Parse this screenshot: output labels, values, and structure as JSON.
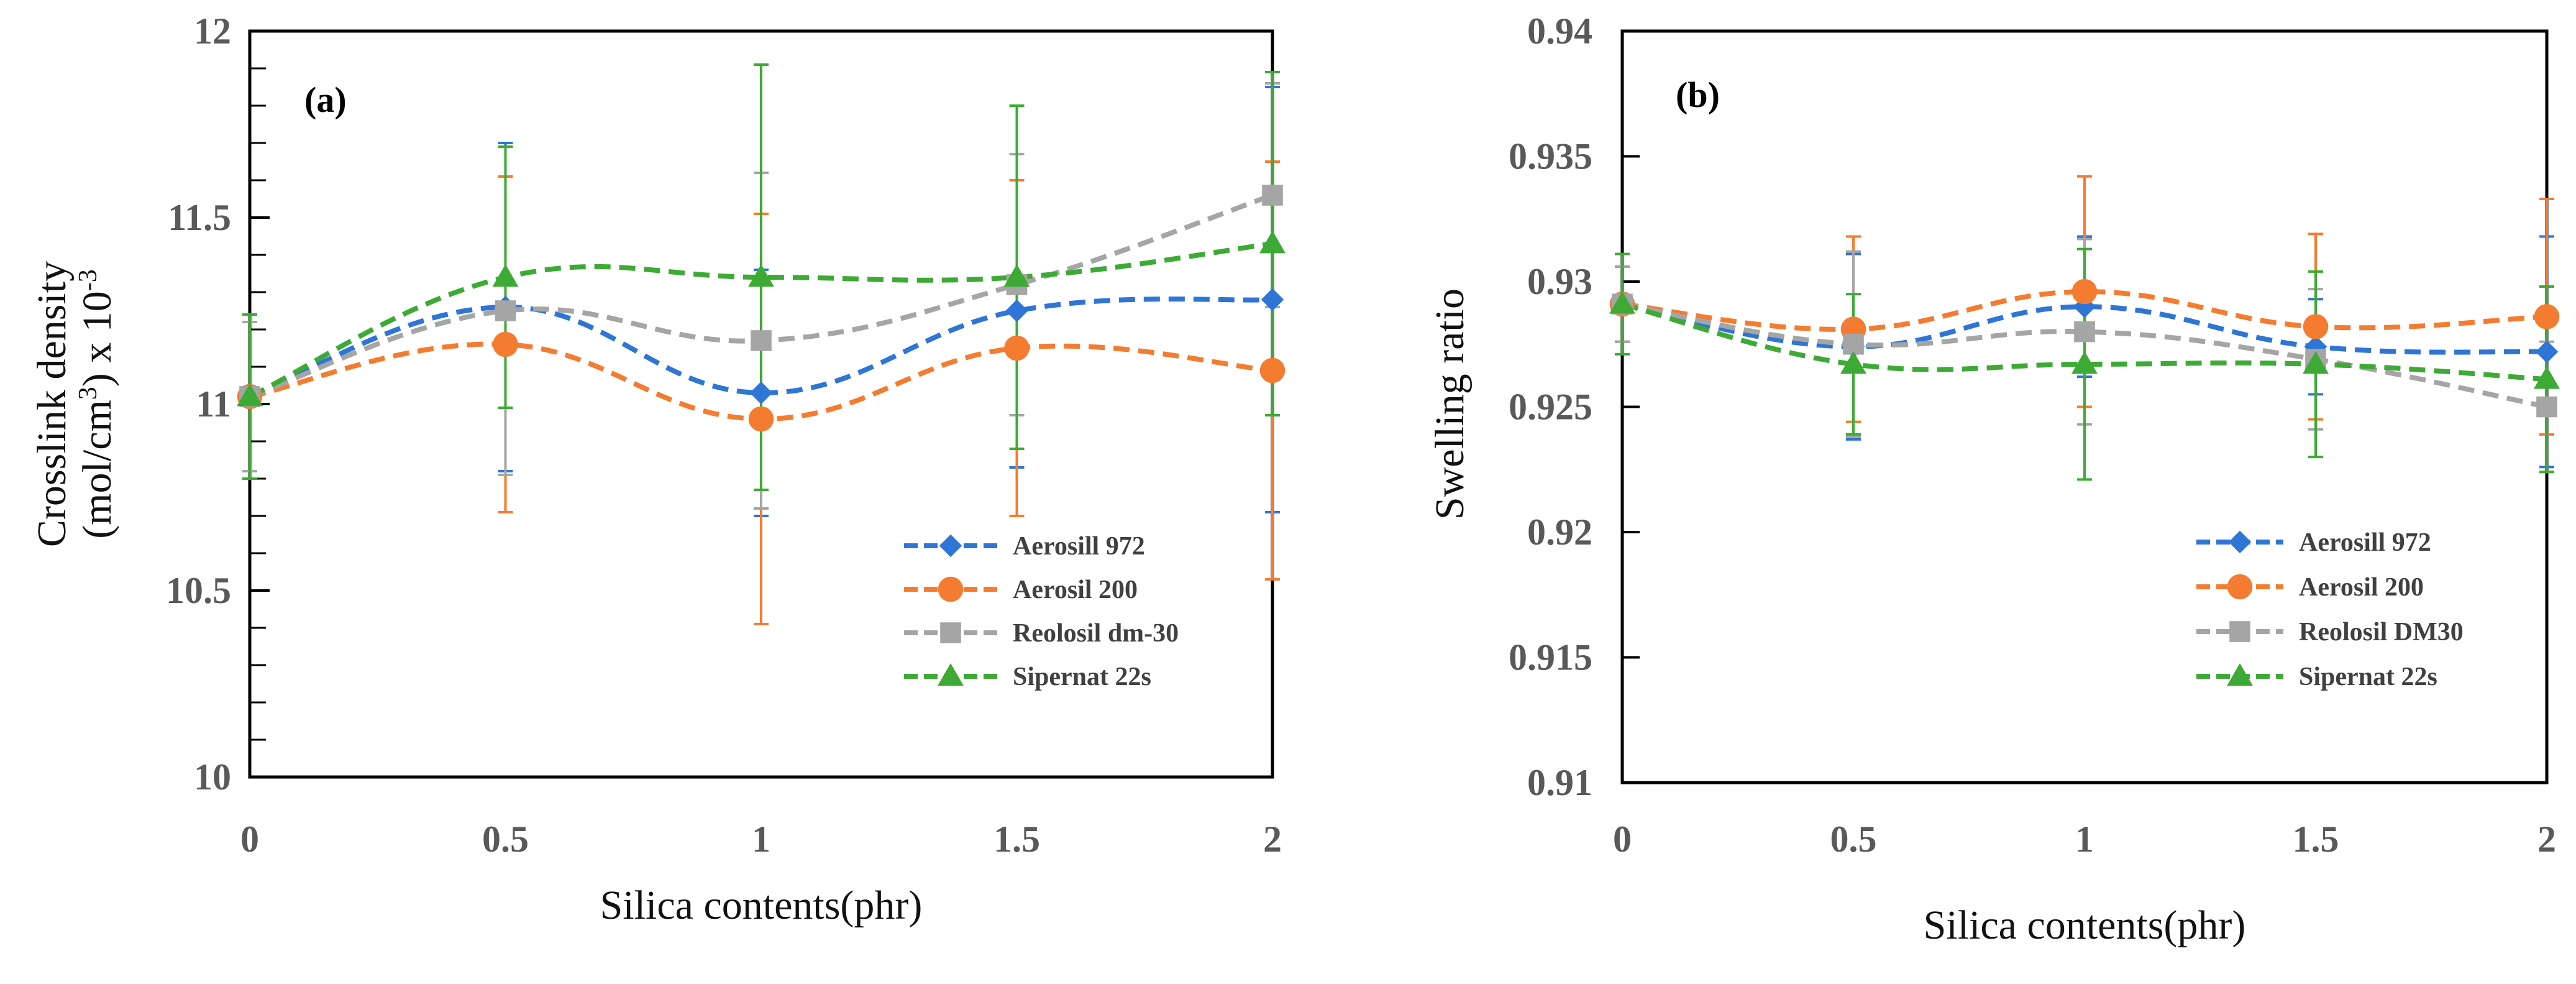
{
  "chart_data": [
    {
      "type": "line",
      "panel_label": "(a)",
      "xlabel": "Silica contents(phr)",
      "ylabel": "Crosslink density",
      "ylabel_line2_prefix": "(mol/cm",
      "ylabel_line2_sup1": "3",
      "ylabel_line2_mid": ") x 10",
      "ylabel_line2_sup2": "-3",
      "xlim": [
        0,
        2
      ],
      "ylim": [
        10,
        12
      ],
      "xticks": [
        0,
        0.5,
        1,
        1.5,
        2
      ],
      "xtick_labels": [
        "0",
        "0.5",
        "1",
        "1.5",
        "2"
      ],
      "yticks": [
        10,
        10.5,
        11,
        11.5,
        12
      ],
      "ytick_labels": [
        "10",
        "10.5",
        "11",
        "11.5",
        "12"
      ],
      "legend_position": "bottom-right",
      "x": [
        0,
        0.5,
        1,
        1.5,
        2
      ],
      "series": [
        {
          "name": "Aerosill 972",
          "marker": "diamond",
          "color": "#2E75D6",
          "values": [
            11.02,
            11.26,
            11.03,
            11.25,
            11.28
          ],
          "err": [
            0.2,
            0.44,
            0.33,
            0.42,
            0.57
          ]
        },
        {
          "name": "Aerosil 200",
          "marker": "circle",
          "color": "#F47C30",
          "values": [
            11.02,
            11.16,
            10.96,
            11.15,
            11.09
          ],
          "err": [
            0.2,
            0.45,
            0.55,
            0.45,
            0.56
          ]
        },
        {
          "name": "Reolosil dm-30",
          "marker": "square",
          "color": "#A5A5A5",
          "values": [
            11.02,
            11.25,
            11.17,
            11.32,
            11.56
          ],
          "err": [
            0.2,
            0.44,
            0.45,
            0.35,
            0.3
          ]
        },
        {
          "name": "Sipernat 22s",
          "marker": "triangle",
          "color": "#3DAA35",
          "values": [
            11.02,
            11.34,
            11.34,
            11.34,
            11.43
          ],
          "err": [
            0.22,
            0.35,
            0.57,
            0.46,
            0.46
          ]
        }
      ]
    },
    {
      "type": "line",
      "panel_label": "(b)",
      "xlabel": "Silica contents(phr)",
      "ylabel": "Swelling ratio",
      "xlim": [
        0,
        2
      ],
      "ylim": [
        0.91,
        0.94
      ],
      "xticks": [
        0,
        0.5,
        1,
        1.5,
        2
      ],
      "xtick_labels": [
        "0",
        "0.5",
        "1",
        "1.5",
        "2"
      ],
      "yticks": [
        0.91,
        0.915,
        0.92,
        0.925,
        0.93,
        0.935,
        0.94
      ],
      "ytick_labels": [
        "0.91",
        "0.915",
        "0.92",
        "0.925",
        "0.93",
        "0.935",
        "0.94"
      ],
      "legend_position": "bottom-right",
      "x": [
        0,
        0.5,
        1,
        1.5,
        2
      ],
      "series": [
        {
          "name": "Aerosill 972",
          "marker": "diamond",
          "color": "#2E75D6",
          "values": [
            0.9291,
            0.9274,
            0.929,
            0.9274,
            0.9272
          ],
          "err": [
            0.0015,
            0.0037,
            0.0028,
            0.0019,
            0.0046
          ]
        },
        {
          "name": "Aerosil 200",
          "marker": "circle",
          "color": "#F47C30",
          "values": [
            0.9291,
            0.9281,
            0.9296,
            0.9282,
            0.9286
          ],
          "err": [
            0.0015,
            0.0037,
            0.0046,
            0.0037,
            0.0047
          ]
        },
        {
          "name": "Reolosil DM30",
          "marker": "square",
          "color": "#A5A5A5",
          "values": [
            0.9291,
            0.9275,
            0.928,
            0.9269,
            0.925
          ],
          "err": [
            0.0015,
            0.0037,
            0.0037,
            0.0028,
            0.0026
          ]
        },
        {
          "name": "Sipernat 22s",
          "marker": "triangle",
          "color": "#3DAA35",
          "values": [
            0.9291,
            0.9267,
            0.9267,
            0.9267,
            0.9261
          ],
          "err": [
            0.002,
            0.0028,
            0.0046,
            0.0037,
            0.0037
          ]
        }
      ]
    }
  ]
}
